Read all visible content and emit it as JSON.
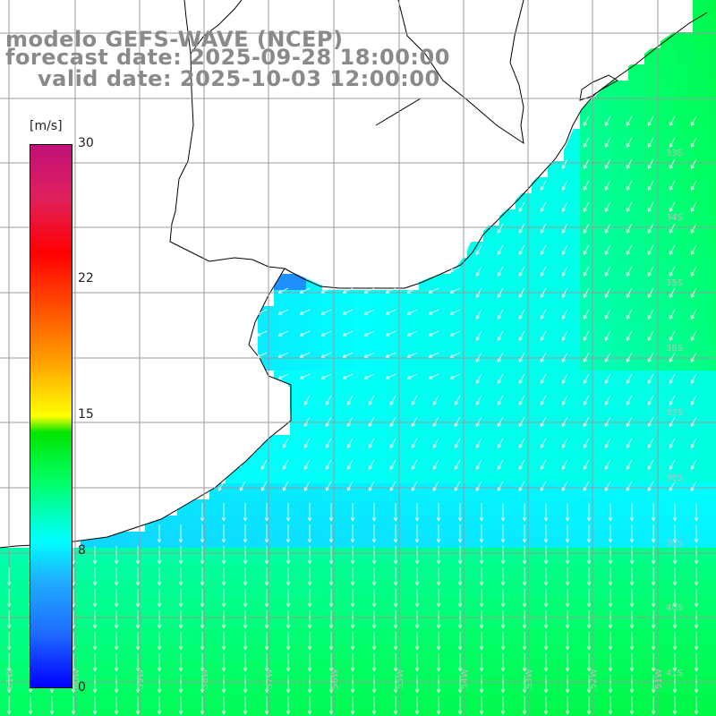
{
  "title": {
    "line1": "modelo GEFS-WAVE (NCEP)",
    "line2": "forecast date: 2025-09-28 18:00:00",
    "line3": "valid date: 2025-10-03 12:00:00"
  },
  "legend": {
    "unit": "[m/s]",
    "ticks": [
      "30",
      "22",
      "15",
      "8",
      "0"
    ],
    "range": [
      0,
      30
    ],
    "colors": [
      "#0000ff",
      "#00ffff",
      "#00e600",
      "#ffff00",
      "#ff0000",
      "#c0107a"
    ]
  },
  "map": {
    "variable": "wind speed with direction arrows",
    "land_color": "#ffffff",
    "coastline_color": "#000000",
    "grid_color": "#9a9a9a",
    "arrow_color": "#ffffff",
    "latitude_labels": [
      "33S",
      "34S",
      "35S",
      "36S",
      "37S",
      "38S",
      "39S",
      "40S",
      "41S"
    ],
    "longitude_labels": [
      "61W",
      "60W",
      "59W",
      "58W",
      "57W",
      "56W",
      "55W",
      "54W",
      "53W",
      "52W",
      "51W"
    ]
  }
}
